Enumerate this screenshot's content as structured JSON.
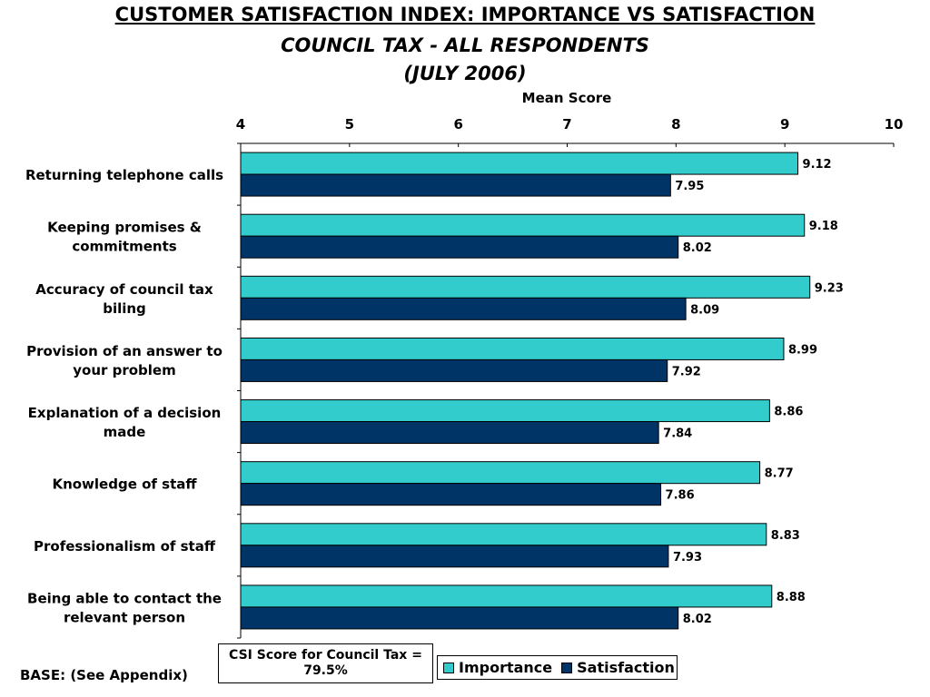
{
  "title_line1": "CUSTOMER SATISFACTION INDEX: IMPORTANCE VS SATISFACTION",
  "title_line2": "COUNCIL TAX - ALL RESPONDENTS",
  "title_line3": "(JULY 2006)",
  "base_note": "BASE: (See Appendix)",
  "csi_box": "CSI Score for Council Tax = 79.5%",
  "colors": {
    "importance": "#33cccc",
    "satisfaction": "#003366"
  },
  "chart_data": {
    "type": "bar",
    "orientation": "horizontal",
    "xlabel": "Mean Score",
    "xlim": [
      4,
      10
    ],
    "xticks": [
      "4",
      "5",
      "6",
      "7",
      "8",
      "9",
      "10"
    ],
    "categories": [
      [
        "Returning telephone calls"
      ],
      [
        "Keeping promises &",
        "commitments"
      ],
      [
        "Accuracy of council tax",
        "biling"
      ],
      [
        "Provision of an answer to",
        "your problem"
      ],
      [
        "Explanation of a decision",
        "made"
      ],
      [
        "Knowledge of staff"
      ],
      [
        "Professionalism of staff"
      ],
      [
        "Being able to contact the",
        "relevant person"
      ]
    ],
    "series": [
      {
        "name": "Importance",
        "values": [
          9.12,
          9.18,
          9.23,
          8.99,
          8.86,
          8.77,
          8.83,
          8.88
        ],
        "labels": [
          "9.12",
          "9.18",
          "9.23",
          "8.99",
          "8.86",
          "8.77",
          "8.83",
          "8.88"
        ]
      },
      {
        "name": "Satisfaction",
        "values": [
          7.95,
          8.02,
          8.09,
          7.92,
          7.84,
          7.86,
          7.93,
          8.02
        ],
        "labels": [
          "7.95",
          "8.02",
          "8.09",
          "7.92",
          "7.84",
          "7.86",
          "7.93",
          "8.02"
        ]
      }
    ],
    "legend_position": "bottom-center",
    "grid": false
  }
}
